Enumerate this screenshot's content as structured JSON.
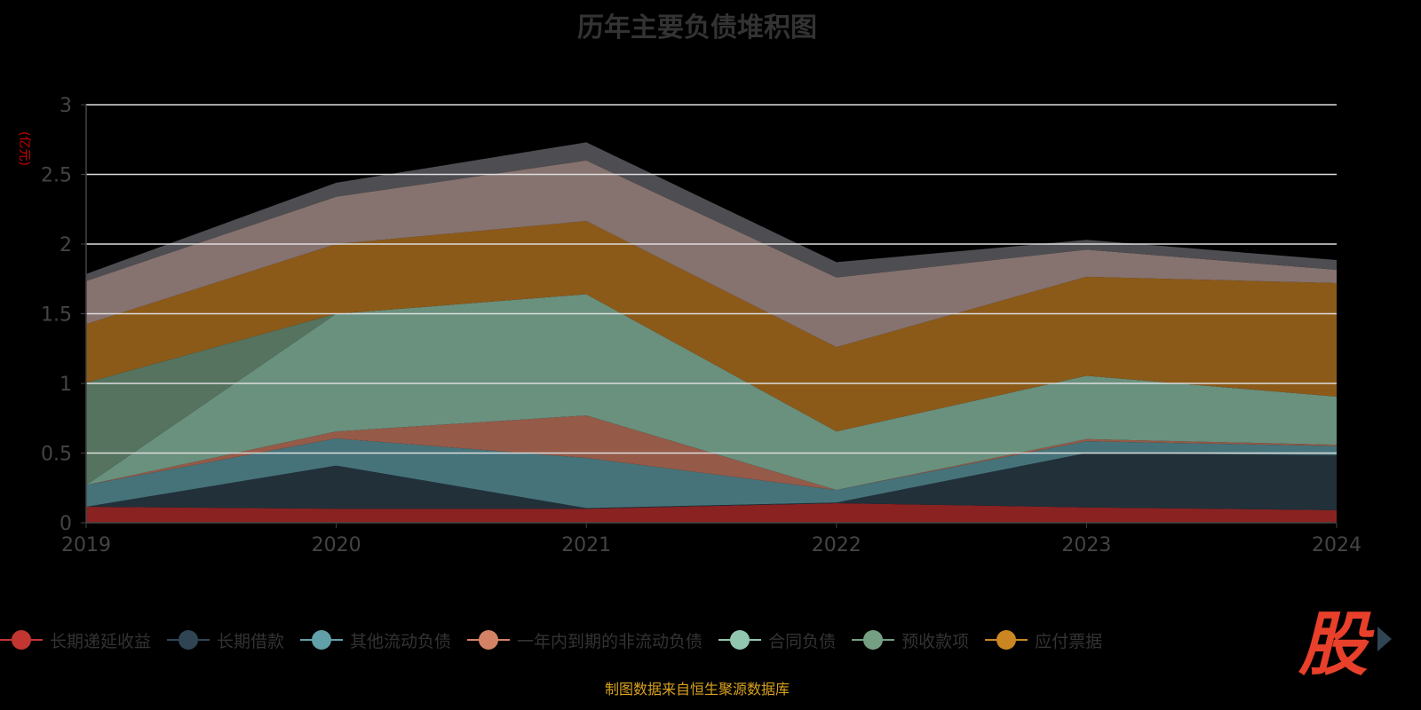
{
  "title": "历年主要负债堆积图",
  "source": "制图数据来自恒生聚源数据库",
  "watermark": "股",
  "chart_data": {
    "type": "area",
    "stacked": true,
    "title": "历年主要负债堆积图",
    "ylabel": "(亿元)",
    "xlabel": "",
    "ylim": [
      0,
      3
    ],
    "yticks": [
      "0",
      "0.5",
      "1",
      "1.5",
      "2",
      "2.5",
      "3"
    ],
    "categories": [
      "2019",
      "2020",
      "2021",
      "2022",
      "2023",
      "2024"
    ],
    "grid": true,
    "legend_position": "bottom",
    "series": [
      {
        "name": "长期递延收益",
        "color": "#c23531",
        "fill": "#8a2222",
        "values": [
          0.115,
          0.1,
          0.1,
          0.14,
          0.11,
          0.09
        ]
      },
      {
        "name": "长期借款",
        "color": "#2f4554",
        "fill": "#22303a",
        "values": [
          0,
          0.31,
          0.005,
          0.005,
          0.39,
          0.395
        ]
      },
      {
        "name": "其他流动负债",
        "color": "#61a0a8",
        "fill": "#46737a",
        "values": [
          0.155,
          0.195,
          0.36,
          0.09,
          0.085,
          0.065
        ]
      },
      {
        "name": "一年内到期的非流动负债",
        "color": "#d48265",
        "fill": "#955a48",
        "values": [
          0,
          0.05,
          0.305,
          0,
          0.015,
          0.01
        ]
      },
      {
        "name": "合同负债",
        "color": "#91c7ae",
        "fill": "#6a907e",
        "values": [
          0,
          0.845,
          0.87,
          0.42,
          0.455,
          0.345
        ]
      },
      {
        "name": "预收款项",
        "color": "#749f83",
        "fill": "#55735f",
        "values": [
          0.735,
          0,
          0,
          0,
          0,
          0
        ]
      },
      {
        "name": "应付票据",
        "color": "#ca8622",
        "fill": "#8c5a18",
        "values": [
          0.42,
          0.5,
          0.525,
          0.605,
          0.71,
          0.815
        ]
      },
      {
        "name": "",
        "color": "#bda29a",
        "fill": "#86726e",
        "values": [
          0.31,
          0.34,
          0.435,
          0.5,
          0.195,
          0.095
        ]
      },
      {
        "name": "",
        "color": "#6e7074",
        "fill": "#4e4e52",
        "values": [
          0.05,
          0.1,
          0.13,
          0.11,
          0.07,
          0.07
        ]
      }
    ]
  }
}
